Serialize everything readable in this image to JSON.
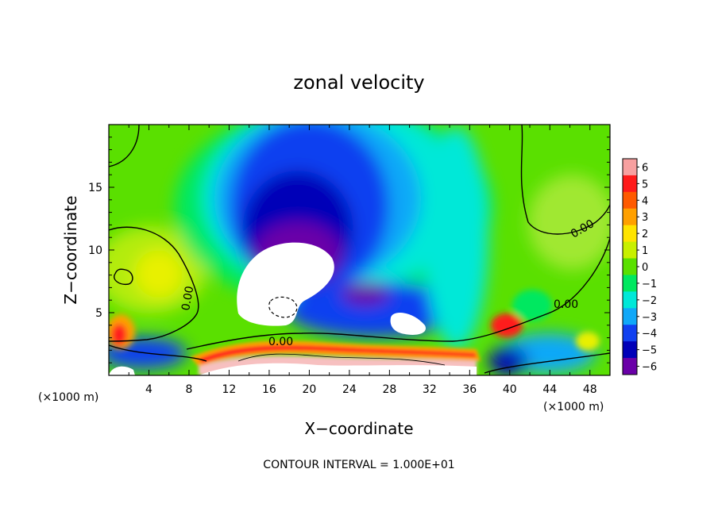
{
  "chart_data": {
    "type": "heatmap",
    "title": "zonal velocity",
    "xlabel": "X−coordinate",
    "ylabel": "Z−coordinate",
    "x_unit": "(×1000 m)",
    "y_unit": "(×1000 m)",
    "xlim": [
      0,
      50
    ],
    "ylim": [
      0,
      20
    ],
    "x_ticks": [
      4,
      8,
      12,
      16,
      20,
      24,
      28,
      32,
      36,
      40,
      44,
      48
    ],
    "y_ticks": [
      5,
      10,
      15
    ],
    "colorbar": {
      "levels": [
        6,
        5,
        4,
        3,
        2,
        1,
        0,
        -1,
        -2,
        -3,
        -4,
        -5,
        -6
      ],
      "level_labels": [
        "6",
        "5",
        "4",
        "3",
        "2",
        "1",
        "0",
        "−1",
        "−2",
        "−3",
        "−4",
        "−5",
        "−6"
      ],
      "colors": [
        "#f7a0a0",
        "#ff1a1a",
        "#ff5a00",
        "#ffa000",
        "#ffe400",
        "#c8f000",
        "#5ae000",
        "#00e860",
        "#00e8d8",
        "#10a8f8",
        "#1040f0",
        "#0000b8",
        "#6a00a8"
      ]
    },
    "contour_labels": [
      "0.00",
      "0.00",
      "0.00",
      "0.00"
    ],
    "contour_interval_text": "CONTOUR INTERVAL = 1.000E+01"
  },
  "colors": {
    "background": "#ffffff",
    "axis": "#000000"
  }
}
